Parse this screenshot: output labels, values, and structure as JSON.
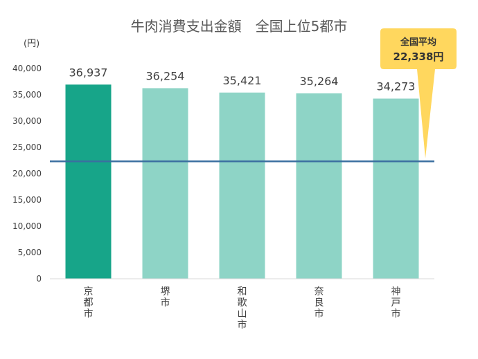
{
  "chart_data": {
    "type": "bar",
    "title": "牛肉消費支出金額　全国上位5都市",
    "ylabel": "(円)",
    "xlabel": "",
    "categories": [
      "京都市",
      "堺市",
      "和歌山市",
      "奈良市",
      "神戸市"
    ],
    "values": [
      36937,
      36254,
      35421,
      35264,
      34273
    ],
    "data_labels": [
      "36,937",
      "36,254",
      "35,421",
      "35,264",
      "34,273"
    ],
    "ylim": [
      0,
      40000
    ],
    "yticks": [
      0,
      5000,
      10000,
      15000,
      20000,
      25000,
      30000,
      35000,
      40000
    ],
    "ytick_labels": [
      "0",
      "5,000",
      "10,000",
      "15,000",
      "20,000",
      "25,000",
      "30,000",
      "35,000",
      "40,000"
    ],
    "grid": false,
    "highlight_index": 0,
    "colors": {
      "highlight": "#17a589",
      "bar": "#8ed4c6",
      "reference_line": "#3a6fa0",
      "callout": "#ffd75e",
      "text": "#404040"
    },
    "reference_line": {
      "value": 22338,
      "label": "全国平均",
      "value_label": "22,338円"
    }
  }
}
